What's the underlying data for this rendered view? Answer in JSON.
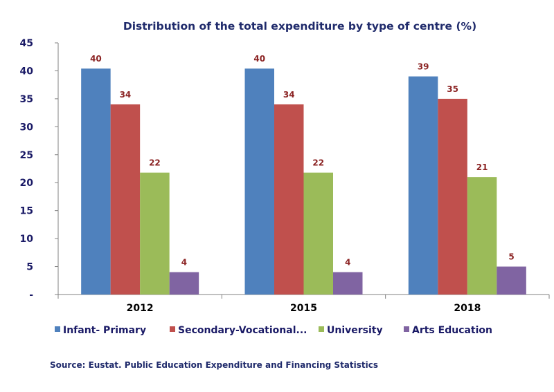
{
  "chart_data": {
    "type": "bar",
    "title": "Distribution of the total expenditure by type of centre (%)",
    "categories": [
      "2012",
      "2015",
      "2018"
    ],
    "series": [
      {
        "name": "Infant- Primary",
        "values": [
          40,
          40,
          39
        ],
        "color": "#4f81bd"
      },
      {
        "name": "Secondary-Vocational...",
        "values": [
          34,
          34,
          35
        ],
        "color": "#c0504d"
      },
      {
        "name": "University",
        "values": [
          22,
          22,
          21
        ],
        "color": "#9bbb59"
      },
      {
        "name": "Arts Education",
        "values": [
          4,
          4,
          5
        ],
        "color": "#8064a2"
      }
    ],
    "plotted_values": [
      [
        40.4,
        40.4,
        39
      ],
      [
        34,
        34,
        35
      ],
      [
        21.8,
        21.8,
        21
      ],
      [
        4,
        4,
        5
      ]
    ],
    "ylim": [
      0,
      45
    ],
    "yticks": [
      0,
      5,
      10,
      15,
      20,
      25,
      30,
      35,
      40,
      45
    ],
    "ytick_labels": [
      "-",
      "5",
      "10",
      "15",
      "20",
      "25",
      "30",
      "35",
      "40",
      "45"
    ],
    "data_label_color": "#8b2323",
    "grid": false,
    "legend_position": "bottom"
  },
  "source": "Source: Eustat. Public Education Expenditure and Financing Statistics"
}
